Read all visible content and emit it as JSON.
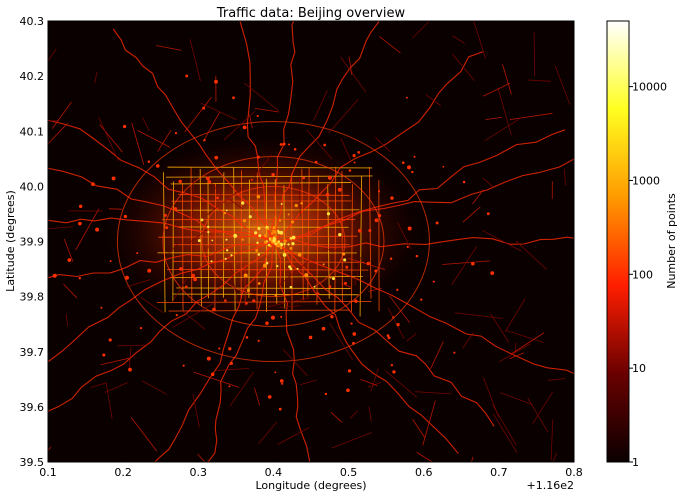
{
  "chart_data": {
    "type": "heatmap",
    "title": "Traffic data: Beijing overview",
    "xlabel": "Longitude (degrees)",
    "ylabel": "Latitude (degrees)",
    "xlim": [
      0.1,
      0.8
    ],
    "ylim": [
      39.5,
      40.3
    ],
    "x_offset_label": "+1.16e2",
    "x_ticks": [
      "0.1",
      "0.2",
      "0.3",
      "0.4",
      "0.5",
      "0.6",
      "0.7",
      "0.8"
    ],
    "y_ticks": [
      "39.5",
      "39.6",
      "39.7",
      "39.8",
      "39.9",
      "40.0",
      "40.1",
      "40.2",
      "40.3"
    ],
    "colorbar": {
      "label": "Number of points",
      "scale": "log",
      "range": [
        1,
        50000
      ],
      "ticks": [
        "1",
        "10",
        "100",
        "1000",
        "10000"
      ],
      "colormap": "hot"
    },
    "grid": false,
    "density_hotspot": {
      "lon": 0.4,
      "lat": 39.9,
      "description_only": false
    }
  },
  "colors": {
    "background": "#0a0000",
    "low": "#3a0000",
    "mid": "#ff2a00",
    "high": "#ffd000",
    "max": "#ffffff"
  }
}
